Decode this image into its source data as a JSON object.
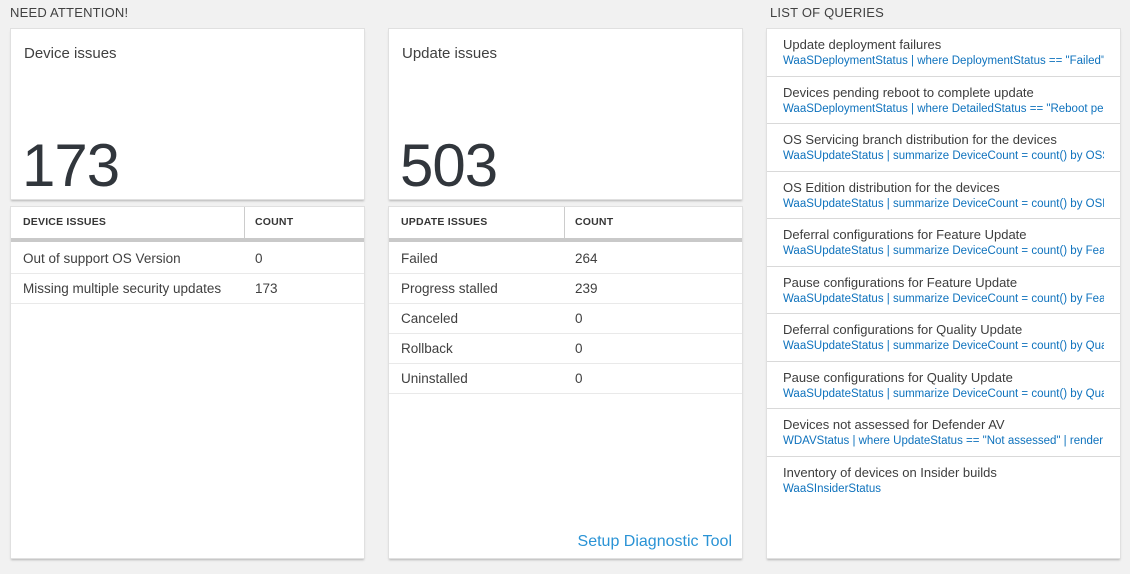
{
  "sections": {
    "need_attention": "NEED ATTENTION!",
    "list_of_queries": "LIST OF QUERIES"
  },
  "colors": {
    "query_blue": "#0e72bd",
    "link_blue": "#2a93d5",
    "big_number": "#31363c",
    "page_bg": "#f1f1f1"
  },
  "device_card": {
    "title": "Device issues",
    "big_number": "173",
    "table": {
      "headers": [
        "DEVICE ISSUES",
        "COUNT"
      ],
      "rows": [
        {
          "label": "Out of support OS Version",
          "count": "0"
        },
        {
          "label": "Missing multiple security updates",
          "count": "173"
        }
      ]
    }
  },
  "update_card": {
    "title": "Update issues",
    "big_number": "503",
    "table": {
      "headers": [
        "UPDATE ISSUES",
        "COUNT"
      ],
      "rows": [
        {
          "label": "Failed",
          "count": "264"
        },
        {
          "label": "Progress stalled",
          "count": "239"
        },
        {
          "label": "Canceled",
          "count": "0"
        },
        {
          "label": "Rollback",
          "count": "0"
        },
        {
          "label": "Uninstalled",
          "count": "0"
        }
      ]
    },
    "setup_link": "Setup Diagnostic Tool"
  },
  "queries": [
    {
      "title": "Update deployment failures",
      "query": "WaaSDeploymentStatus | where DeploymentStatus == \"Failed\" |..."
    },
    {
      "title": "Devices pending reboot to complete update",
      "query": "WaaSDeploymentStatus | where DetailedStatus == \"Reboot pend..."
    },
    {
      "title": "OS Servicing branch distribution for the devices",
      "query": "WaaSUpdateStatus | summarize DeviceCount = count() by OSSer..."
    },
    {
      "title": "OS Edition distribution for the devices",
      "query": "WaaSUpdateStatus | summarize DeviceCount = count() by OSEdit..."
    },
    {
      "title": "Deferral configurations for Feature Update",
      "query": "WaaSUpdateStatus | summarize DeviceCount = count() by Featur..."
    },
    {
      "title": "Pause configurations for Feature Update",
      "query": "WaaSUpdateStatus | summarize DeviceCount = count() by Featur..."
    },
    {
      "title": "Deferral configurations for Quality Update",
      "query": "WaaSUpdateStatus | summarize DeviceCount = count() by Qualit..."
    },
    {
      "title": "Pause configurations for Quality Update",
      "query": "WaaSUpdateStatus | summarize DeviceCount = count() by Qualit..."
    },
    {
      "title": "Devices not assessed for Defender AV",
      "query": "WDAVStatus | where UpdateStatus == \"Not assessed\" | render ta..."
    },
    {
      "title": "Inventory of devices on Insider builds",
      "query": "WaaSInsiderStatus"
    }
  ]
}
